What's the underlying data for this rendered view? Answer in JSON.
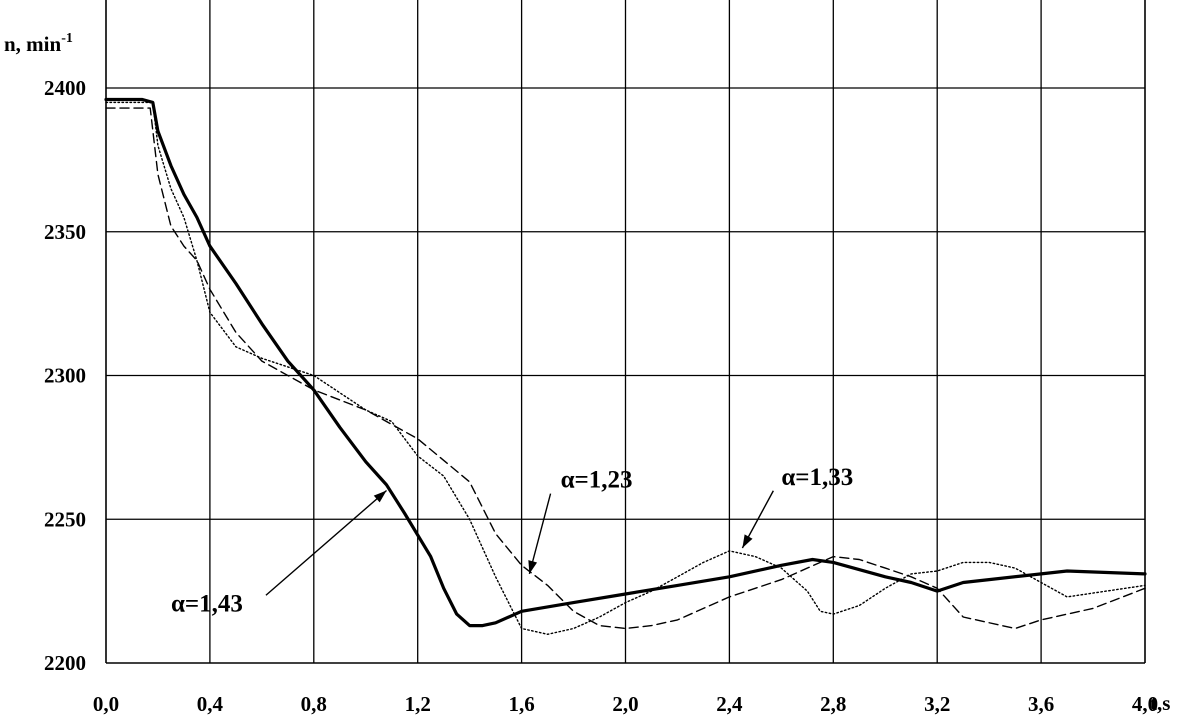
{
  "chart_data": {
    "type": "line",
    "title": "",
    "xlabel": "t,s",
    "ylabel": "n, min",
    "ylabel_sup": "-1",
    "xlim": [
      0,
      4.0
    ],
    "ylim": [
      2200,
      2400
    ],
    "x_ticks": [
      "0,0",
      "0,4",
      "0,8",
      "1,2",
      "1,6",
      "2,0",
      "2,4",
      "2,8",
      "3,2",
      "3,6",
      "4,0"
    ],
    "y_ticks": [
      "2200",
      "2250",
      "2300",
      "2350",
      "2400"
    ],
    "grid": true,
    "legend": "none",
    "series": [
      {
        "style": "solid",
        "x": [
          0.0,
          0.1,
          0.14,
          0.18,
          0.2,
          0.25,
          0.3,
          0.35,
          0.4,
          0.5,
          0.6,
          0.7,
          0.8,
          0.9,
          1.0,
          1.08,
          1.15,
          1.25,
          1.3,
          1.35,
          1.4,
          1.45,
          1.5,
          1.6,
          1.8,
          2.0,
          2.2,
          2.4,
          2.6,
          2.72,
          2.8,
          3.0,
          3.1,
          3.2,
          3.3,
          3.4,
          3.6,
          3.7,
          4.0
        ],
        "y": [
          2396,
          2396,
          2396,
          2395,
          2385,
          2373,
          2363,
          2355,
          2345,
          2332,
          2318,
          2305,
          2295,
          2282,
          2270,
          2262,
          2252,
          2237,
          2226,
          2217,
          2213,
          2213,
          2214,
          2218,
          2221,
          2224,
          2227,
          2230,
          2234,
          2236,
          2235,
          2230,
          2228,
          2225,
          2228,
          2229,
          2231,
          2232,
          2231
        ]
      },
      {
        "style": "dashed",
        "x": [
          0.0,
          0.17,
          0.2,
          0.25,
          0.3,
          0.35,
          0.4,
          0.5,
          0.6,
          0.8,
          1.0,
          1.2,
          1.4,
          1.5,
          1.6,
          1.7,
          1.8,
          1.9,
          2.0,
          2.1,
          2.2,
          2.4,
          2.6,
          2.8,
          2.9,
          3.0,
          3.1,
          3.2,
          3.3,
          3.5,
          3.6,
          3.8,
          4.0
        ],
        "y": [
          2393,
          2393,
          2370,
          2352,
          2345,
          2340,
          2330,
          2315,
          2305,
          2295,
          2288,
          2278,
          2263,
          2245,
          2234,
          2227,
          2218,
          2213,
          2212,
          2213,
          2215,
          2223,
          2229,
          2237,
          2236,
          2233,
          2230,
          2226,
          2216,
          2212,
          2215,
          2219,
          2226
        ]
      },
      {
        "style": "dotted",
        "x": [
          0.0,
          0.18,
          0.2,
          0.25,
          0.3,
          0.35,
          0.4,
          0.5,
          0.6,
          0.7,
          0.8,
          1.0,
          1.1,
          1.2,
          1.3,
          1.4,
          1.5,
          1.6,
          1.7,
          1.8,
          1.9,
          2.0,
          2.1,
          2.2,
          2.3,
          2.4,
          2.5,
          2.6,
          2.7,
          2.75,
          2.8,
          2.9,
          3.0,
          3.1,
          3.2,
          3.3,
          3.4,
          3.5,
          3.6,
          3.7,
          4.0
        ],
        "y": [
          2395,
          2395,
          2380,
          2365,
          2355,
          2340,
          2322,
          2310,
          2306,
          2303,
          2300,
          2288,
          2284,
          2272,
          2265,
          2250,
          2230,
          2212,
          2210,
          2212,
          2216,
          2221,
          2225,
          2230,
          2235,
          2239,
          2237,
          2233,
          2225,
          2218,
          2217,
          2220,
          2226,
          2231,
          2232,
          2235,
          2235,
          2233,
          2228,
          2223,
          2227
        ]
      }
    ],
    "annotations": [
      {
        "text": "α=1,43",
        "x": 0.25,
        "y": 2218,
        "arrow_to": [
          1.08,
          2260
        ]
      },
      {
        "text": "α=1,23",
        "x": 1.75,
        "y": 2261,
        "arrow_to": [
          1.63,
          2231
        ]
      },
      {
        "text": "α=1,33",
        "x": 2.6,
        "y": 2262,
        "arrow_to": [
          2.45,
          2240
        ]
      }
    ]
  }
}
